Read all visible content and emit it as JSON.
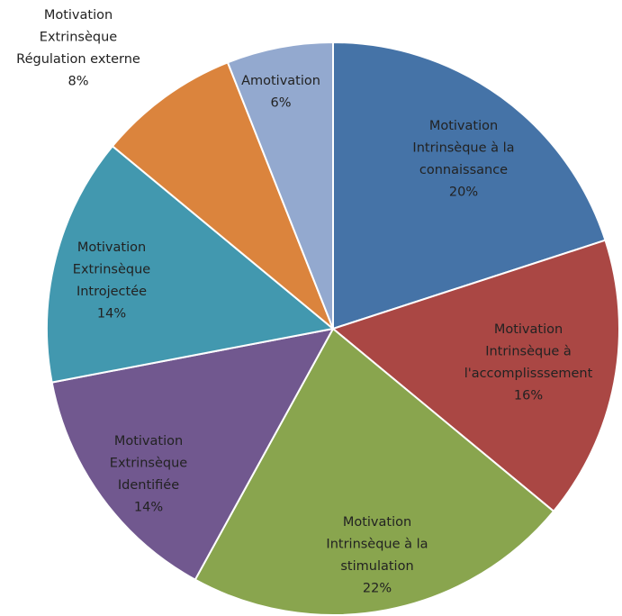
{
  "chart_data": {
    "type": "pie",
    "slices": [
      {
        "label": [
          "Motivation",
          "Intrinsèque à la",
          "connaissance"
        ],
        "value": 20,
        "value_label": "20%",
        "color": "#4573a7"
      },
      {
        "label": [
          "Motivation",
          "Intrinsèque à",
          "l'accomplisssement"
        ],
        "value": 16,
        "value_label": "16%",
        "color": "#aa4744"
      },
      {
        "label": [
          "Motivation",
          "Intrinsèque à la",
          "stimulation"
        ],
        "value": 22,
        "value_label": "22%",
        "color": "#89a54e"
      },
      {
        "label": [
          "Motivation",
          "Extrinsèque",
          "Identifiée"
        ],
        "value": 14,
        "value_label": "14%",
        "color": "#71588f"
      },
      {
        "label": [
          "Motivation",
          "Extrinsèque",
          "Introjectée"
        ],
        "value": 14,
        "value_label": "14%",
        "color": "#4298af"
      },
      {
        "label": [
          "Motivation",
          "Extrinsèque",
          "Régulation externe"
        ],
        "value": 8,
        "value_label": "8%",
        "color": "#db843d"
      },
      {
        "label": [
          "Amotivation"
        ],
        "value": 6,
        "value_label": "6%",
        "color": "#93a9cf"
      }
    ]
  }
}
